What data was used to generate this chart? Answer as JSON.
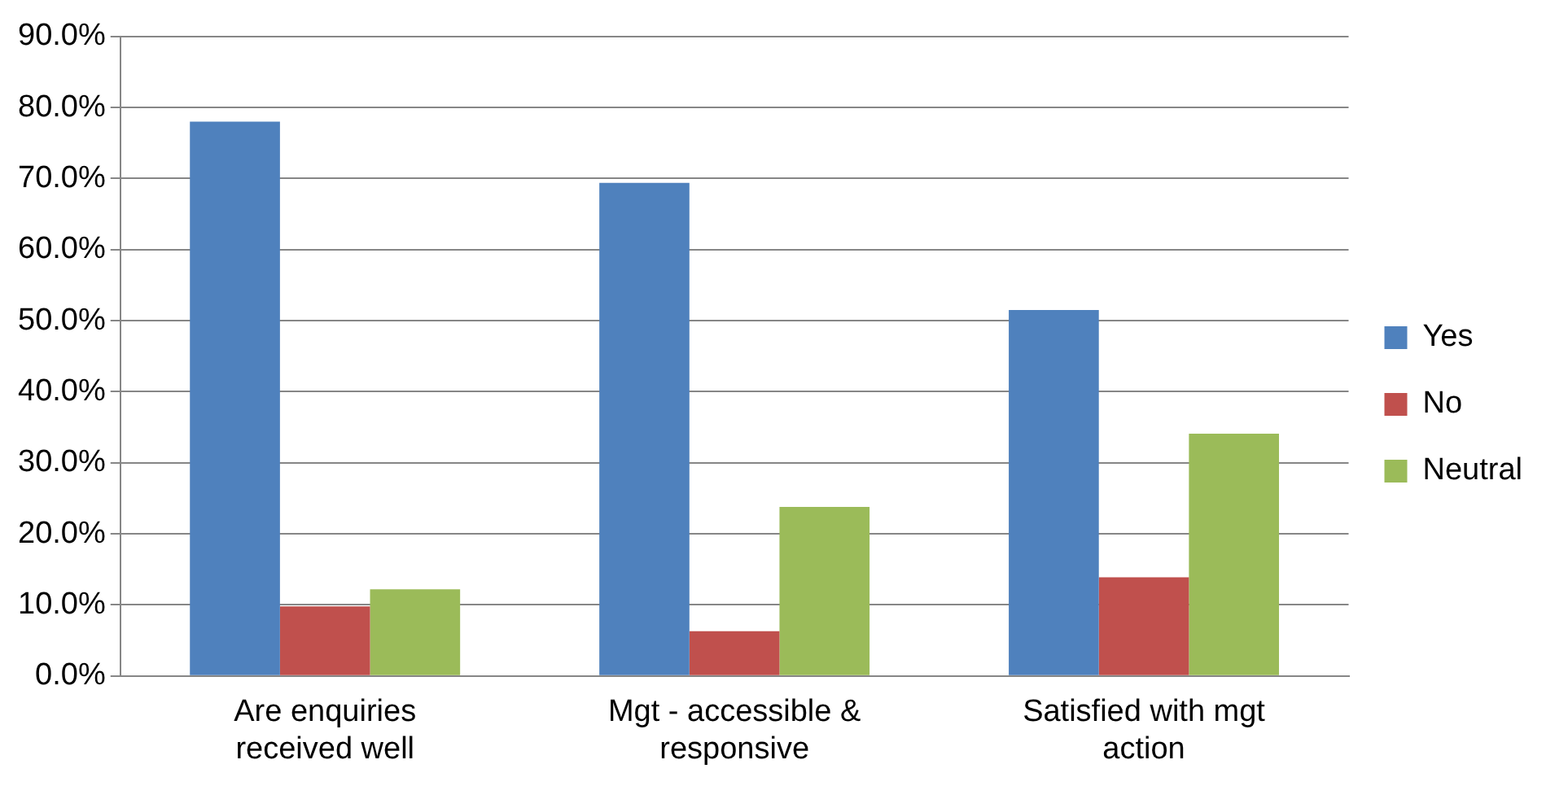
{
  "chart_data": {
    "type": "bar",
    "categories": [
      "Are enquiries received well",
      "Mgt - accessible & responsive",
      "Satisfied with mgt action"
    ],
    "series": [
      {
        "name": "Yes",
        "color": "#4f81bd",
        "values": [
          78.0,
          69.4,
          51.5
        ]
      },
      {
        "name": "No",
        "color": "#c0504d",
        "values": [
          9.8,
          6.3,
          13.9
        ]
      },
      {
        "name": "Neutral",
        "color": "#9bbb59",
        "values": [
          12.2,
          23.8,
          34.1
        ]
      }
    ],
    "ylim": [
      0,
      90
    ],
    "yticks": [
      {
        "value": 0,
        "label": "0.0%"
      },
      {
        "value": 10,
        "label": "10.0%"
      },
      {
        "value": 20,
        "label": "20.0%"
      },
      {
        "value": 30,
        "label": "30.0%"
      },
      {
        "value": 40,
        "label": "40.0%"
      },
      {
        "value": 50,
        "label": "50.0%"
      },
      {
        "value": 60,
        "label": "60.0%"
      },
      {
        "value": 70,
        "label": "70.0%"
      },
      {
        "value": 80,
        "label": "80.0%"
      },
      {
        "value": 90,
        "label": "90.0%"
      }
    ],
    "grid": "y",
    "legend": "right"
  }
}
